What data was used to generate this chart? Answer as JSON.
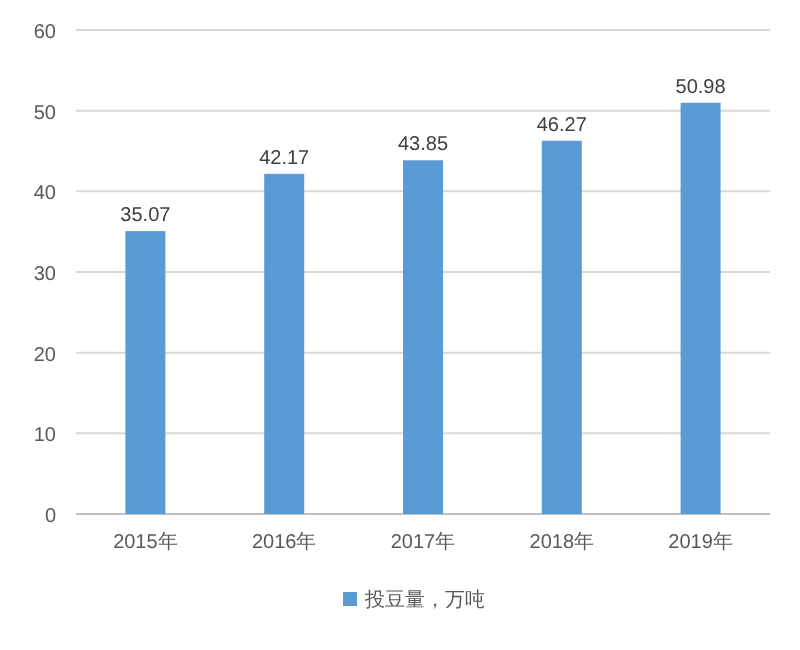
{
  "chart_data": {
    "type": "bar",
    "categories": [
      "2015年",
      "2016年",
      "2017年",
      "2018年",
      "2019年"
    ],
    "series": [
      {
        "name": "投豆量，万吨",
        "color": "#5b9bd5",
        "values": [
          35.07,
          42.17,
          43.85,
          46.27,
          50.98
        ]
      }
    ],
    "ylim": [
      0,
      60
    ],
    "yticks": [
      0,
      10,
      20,
      30,
      40,
      50,
      60
    ],
    "grid": "y",
    "legend": "bottom",
    "data_labels": true
  }
}
